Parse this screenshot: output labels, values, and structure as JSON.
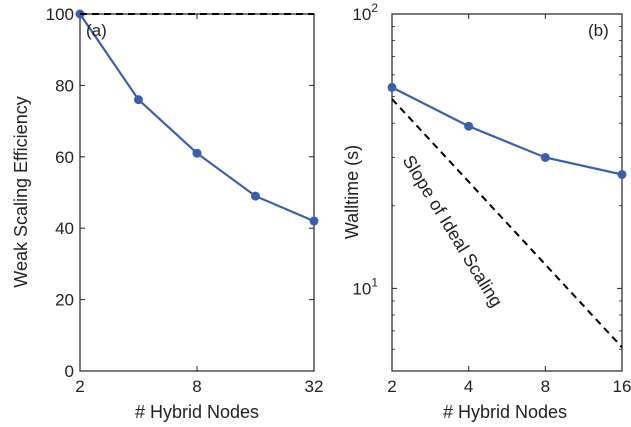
{
  "chart_data": [
    {
      "type": "line",
      "panel_label": "(a)",
      "xlabel": "# Hybrid Nodes",
      "ylabel": "Weak Scaling Efficiency",
      "x_scale": "log2",
      "xlim": [
        2,
        32
      ],
      "ylim": [
        0,
        100
      ],
      "x_ticks": [
        2,
        8,
        32
      ],
      "x_tick_labels": [
        "2",
        "8",
        "32"
      ],
      "y_ticks": [
        0,
        20,
        40,
        60,
        80,
        100
      ],
      "y_tick_labels": [
        "0",
        "20",
        "40",
        "60",
        "80",
        "100"
      ],
      "series": [
        {
          "name": "",
          "style": "solid-markers",
          "color": "#3a5fae",
          "x": [
            2,
            4,
            8,
            16,
            32
          ],
          "y": [
            100,
            76,
            61,
            49,
            42
          ]
        },
        {
          "name": "",
          "style": "dashed",
          "color": "#000000",
          "x": [
            2,
            32
          ],
          "y": [
            100,
            100
          ]
        }
      ],
      "grid": false
    },
    {
      "type": "line",
      "panel_label": "(b)",
      "xlabel": "# Hybrid Nodes",
      "ylabel": "Walltime (s)",
      "x_scale": "log2",
      "y_scale": "log10",
      "xlim": [
        2,
        16
      ],
      "ylim": [
        5,
        100
      ],
      "x_ticks": [
        2,
        4,
        8,
        16
      ],
      "x_tick_labels": [
        "2",
        "4",
        "8",
        "16"
      ],
      "y_ticks": [
        10,
        100
      ],
      "y_tick_labels": [
        {
          "base": "10",
          "exp": "1"
        },
        {
          "base": "10",
          "exp": "2"
        }
      ],
      "annotation": "Slope of Ideal Scaling",
      "series": [
        {
          "name": "",
          "style": "solid-markers",
          "color": "#3a5fae",
          "x": [
            2,
            4,
            8,
            16
          ],
          "y": [
            54,
            39,
            30,
            26
          ]
        },
        {
          "name": "",
          "style": "dashed",
          "color": "#000000",
          "x": [
            2,
            16
          ],
          "y": [
            49,
            6.1
          ]
        }
      ],
      "grid": false
    }
  ]
}
